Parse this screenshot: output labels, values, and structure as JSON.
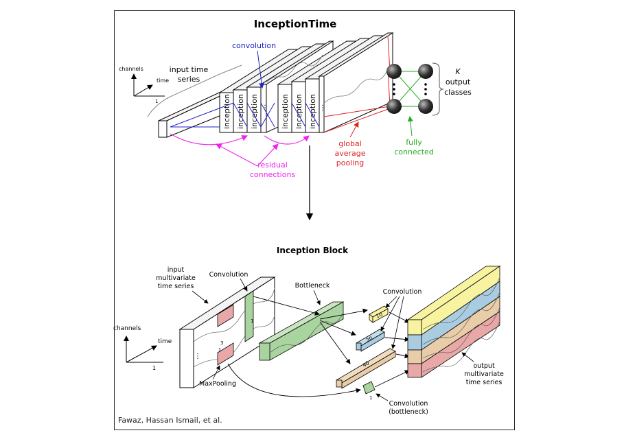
{
  "title": "InceptionTime",
  "top": {
    "axis_channels": "channels",
    "axis_time": "time",
    "axis_one": "1",
    "input_label": [
      "input time",
      "series"
    ],
    "convolution_label": "convolution",
    "module_label": "inception",
    "output_label": [
      "K",
      "output",
      "classes"
    ],
    "gap_label": [
      "global",
      "average",
      "pooling"
    ],
    "fc_label": [
      "fully",
      "connected"
    ],
    "residual_label": [
      "residual",
      "connections"
    ]
  },
  "bottom": {
    "title": "Inception Block",
    "input_label": [
      "input",
      "multivariate",
      "time series"
    ],
    "conv_label": "Convolution",
    "bottleneck_label": "Bottleneck",
    "conv_multi_label": "Convolution",
    "axis_channels": "channels",
    "axis_time": "time",
    "axis_one": "1",
    "maxpool_label": "MaxPooling",
    "conv_bn_label": [
      "Convolution",
      "(bottleneck)"
    ],
    "output_label": [
      "output",
      "multivariate",
      "time series"
    ],
    "size_10": "10",
    "size_20": "20",
    "size_40": "40",
    "size_3": "3",
    "size_1a": "1",
    "size_1b": "1",
    "size_1c": "1"
  },
  "credit": "Fawaz, Hassan Ismail, et al.",
  "colors": {
    "convolution": "#2222cc",
    "gap": "#dd2222",
    "fc": "#22aa22",
    "residual": "#ee22ee",
    "green_block": "#a9d4a0",
    "yellow": "#f7f3a0",
    "blue": "#a9cce0",
    "tan": "#e8cda8",
    "pink": "#e8a8a8"
  }
}
